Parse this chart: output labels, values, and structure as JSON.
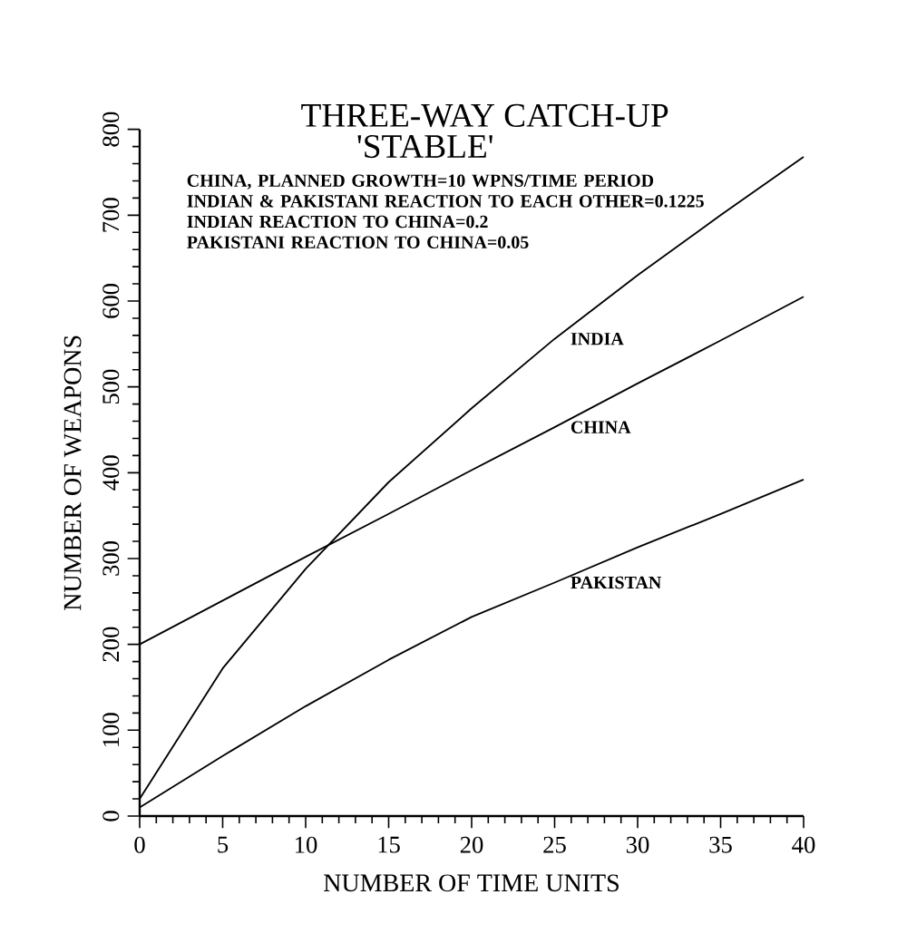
{
  "chart_data": {
    "type": "line",
    "title": "THREE-WAY CATCH-UP",
    "subtitle": "'STABLE'",
    "xlabel": "NUMBER OF TIME UNITS",
    "ylabel": "NUMBER OF WEAPONS",
    "x": [
      0,
      5,
      10,
      15,
      20,
      25,
      30,
      35,
      40
    ],
    "series": [
      {
        "name": "INDIA",
        "color": "#000000",
        "values": [
          20,
          172,
          288,
          389,
          475,
          556,
          630,
          700,
          768
        ]
      },
      {
        "name": "CHINA",
        "color": "#000000",
        "values": [
          200,
          251,
          302,
          352,
          403,
          453,
          504,
          554,
          605
        ]
      },
      {
        "name": "PAKISTAN",
        "color": "#000000",
        "values": [
          10,
          70,
          128,
          182,
          232,
          272,
          313,
          352,
          392
        ]
      }
    ],
    "annotations": [
      "CHINA, PLANNED GROWTH=10 WPNS/TIME PERIOD",
      "INDIAN & PAKISTANI REACTION TO EACH OTHER=0.1225",
      "INDIAN REACTION TO CHINA=0.2",
      "PAKISTANI REACTION TO CHINA=0.05"
    ],
    "xlim": [
      0,
      40
    ],
    "ylim": [
      0,
      800
    ],
    "xticks": [
      0,
      5,
      10,
      15,
      20,
      25,
      30,
      35,
      40
    ],
    "yticks": [
      0,
      100,
      200,
      300,
      400,
      500,
      600,
      700,
      800
    ],
    "grid": false,
    "legend": false,
    "marker": "none",
    "line_style": "solid"
  }
}
